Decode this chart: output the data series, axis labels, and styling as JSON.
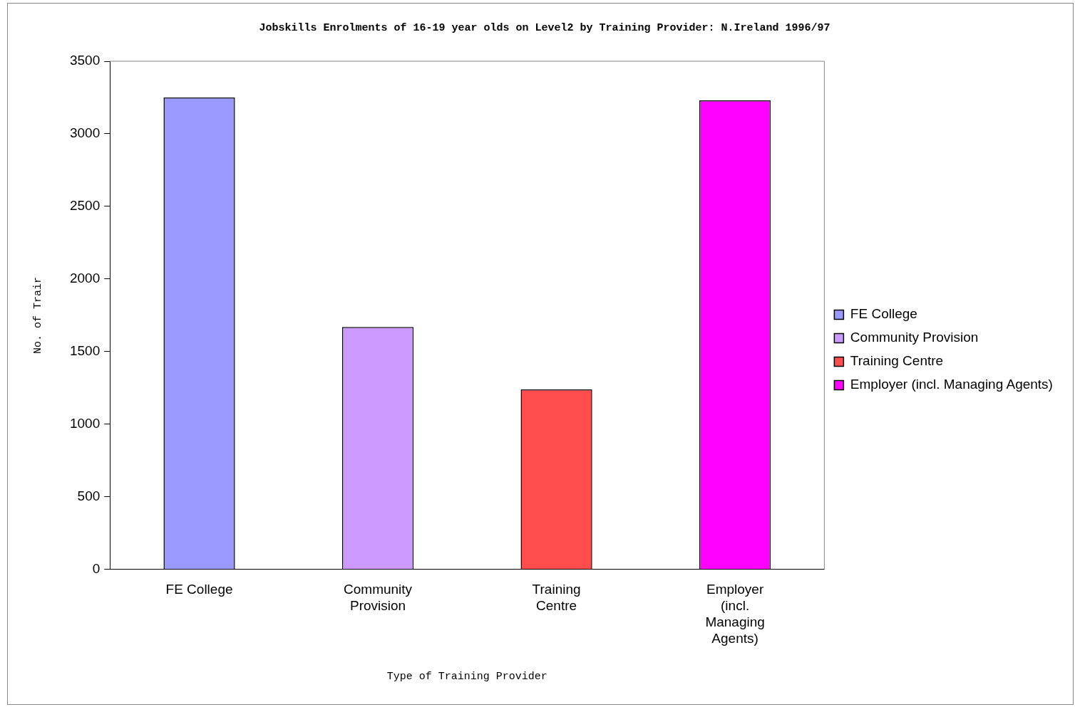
{
  "chart_data": {
    "type": "bar",
    "title": "Jobskills Enrolments of 16-19 year olds on Level2 by Training Provider: N.Ireland 1996/97",
    "xlabel": "Type of Training Provider",
    "ylabel": "No. of Trair",
    "categories": [
      "FE College",
      "Community Provision",
      "Training Centre",
      "Employer (incl. Managing Agents)"
    ],
    "series": [
      {
        "name": "FE College",
        "color": "#9999ff",
        "values": [
          3250,
          null,
          null,
          null
        ]
      },
      {
        "name": "Community Provision",
        "color": "#cc99ff",
        "values": [
          null,
          1670,
          null,
          null
        ]
      },
      {
        "name": "Training Centre",
        "color": "#ff4d4d",
        "values": [
          null,
          null,
          1240,
          null
        ]
      },
      {
        "name": "Employer (incl. Managing Agents)",
        "color": "#ff00ff",
        "values": [
          null,
          null,
          null,
          3230
        ]
      }
    ],
    "ylim": [
      0,
      3500
    ],
    "yticks": [
      0,
      500,
      1000,
      1500,
      2000,
      2500,
      3000,
      3500
    ],
    "grid": false,
    "legend": "right"
  }
}
